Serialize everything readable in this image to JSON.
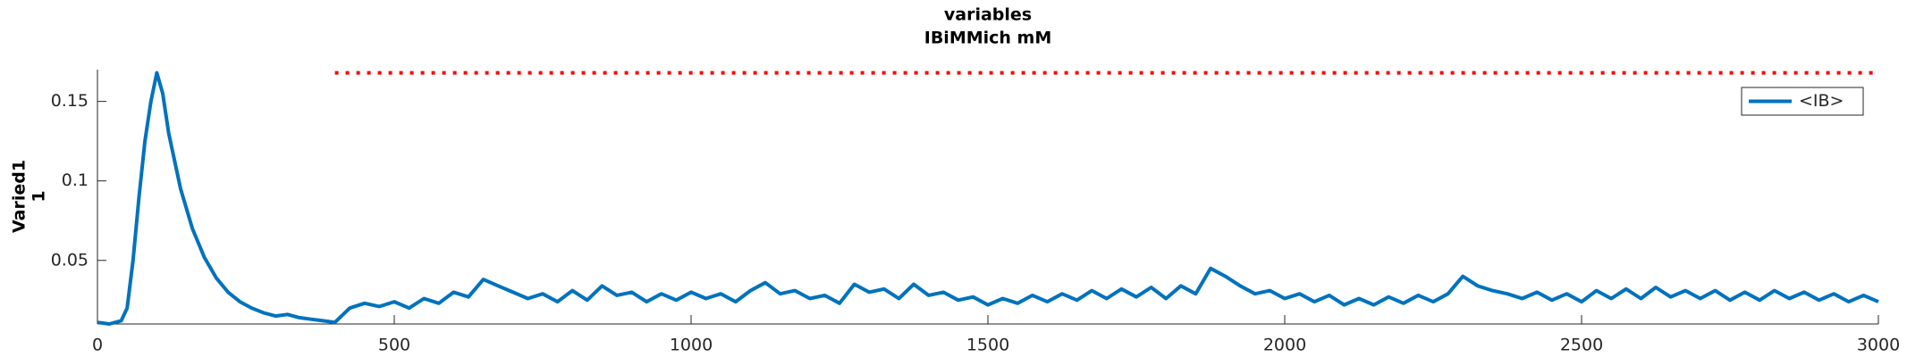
{
  "chart_data": {
    "type": "line",
    "title": "variables",
    "subtitle": "IBiMMich mM",
    "y_label": [
      "Varied1",
      "1"
    ],
    "xlim": [
      0,
      3000
    ],
    "xticks": [
      0,
      500,
      1000,
      1500,
      2000,
      2500,
      3000
    ],
    "ylim": [
      0.01,
      0.17
    ],
    "yticks": [
      0.05,
      0.1,
      0.15
    ],
    "legend_position": "upper right",
    "reference_line": {
      "x": [
        400,
        3000
      ],
      "y": 0.168,
      "color": "#ff0000"
    },
    "x": [
      0,
      20,
      40,
      50,
      60,
      70,
      80,
      90,
      100,
      110,
      120,
      140,
      160,
      180,
      200,
      220,
      240,
      260,
      280,
      300,
      320,
      340,
      360,
      380,
      400,
      425,
      450,
      475,
      500,
      525,
      550,
      575,
      600,
      625,
      650,
      675,
      700,
      725,
      750,
      775,
      800,
      825,
      850,
      875,
      900,
      925,
      950,
      975,
      1000,
      1025,
      1050,
      1075,
      1100,
      1125,
      1150,
      1175,
      1200,
      1225,
      1250,
      1275,
      1300,
      1325,
      1350,
      1375,
      1400,
      1425,
      1450,
      1475,
      1500,
      1525,
      1550,
      1575,
      1600,
      1625,
      1650,
      1675,
      1700,
      1725,
      1750,
      1775,
      1800,
      1825,
      1850,
      1875,
      1900,
      1925,
      1950,
      1975,
      2000,
      2025,
      2050,
      2075,
      2100,
      2125,
      2150,
      2175,
      2200,
      2225,
      2250,
      2275,
      2300,
      2325,
      2350,
      2375,
      2400,
      2425,
      2450,
      2475,
      2500,
      2525,
      2550,
      2575,
      2600,
      2625,
      2650,
      2675,
      2700,
      2725,
      2750,
      2775,
      2800,
      2825,
      2850,
      2875,
      2900,
      2925,
      2950,
      2975,
      3000
    ],
    "series": [
      {
        "name": "<IB>",
        "color": "#0072bd",
        "values": [
          0.011,
          0.01,
          0.012,
          0.02,
          0.05,
          0.09,
          0.125,
          0.15,
          0.168,
          0.155,
          0.13,
          0.095,
          0.07,
          0.052,
          0.039,
          0.03,
          0.024,
          0.02,
          0.017,
          0.015,
          0.016,
          0.014,
          0.013,
          0.012,
          0.011,
          0.02,
          0.023,
          0.021,
          0.024,
          0.02,
          0.026,
          0.023,
          0.03,
          0.027,
          0.038,
          0.034,
          0.03,
          0.026,
          0.029,
          0.024,
          0.031,
          0.025,
          0.034,
          0.028,
          0.03,
          0.024,
          0.029,
          0.025,
          0.03,
          0.026,
          0.029,
          0.024,
          0.031,
          0.036,
          0.029,
          0.031,
          0.026,
          0.028,
          0.023,
          0.035,
          0.03,
          0.032,
          0.026,
          0.035,
          0.028,
          0.03,
          0.025,
          0.027,
          0.022,
          0.026,
          0.023,
          0.028,
          0.024,
          0.029,
          0.025,
          0.031,
          0.026,
          0.032,
          0.027,
          0.033,
          0.026,
          0.034,
          0.029,
          0.045,
          0.04,
          0.034,
          0.029,
          0.031,
          0.026,
          0.029,
          0.024,
          0.028,
          0.022,
          0.026,
          0.022,
          0.027,
          0.023,
          0.028,
          0.024,
          0.029,
          0.04,
          0.034,
          0.031,
          0.029,
          0.026,
          0.03,
          0.025,
          0.029,
          0.024,
          0.031,
          0.026,
          0.032,
          0.026,
          0.033,
          0.027,
          0.031,
          0.026,
          0.031,
          0.025,
          0.03,
          0.025,
          0.031,
          0.026,
          0.03,
          0.025,
          0.029,
          0.024,
          0.028,
          0.024
        ]
      }
    ]
  }
}
